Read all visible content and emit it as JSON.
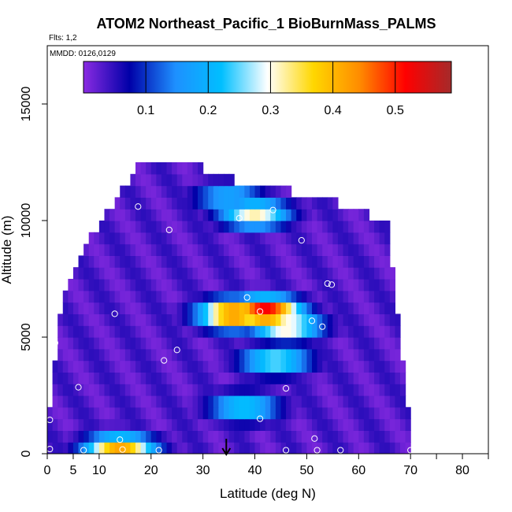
{
  "chart_data": {
    "type": "heatmap",
    "title": "ATOM2 Northeast_Pacific_1 BioBurnMass_PALMS",
    "annotations": [
      "Flts: 1,2",
      "MMDD: 0126,0129"
    ],
    "xlabel": "Latitude (deg N)",
    "ylabel": "Altitude (m)",
    "xlim": [
      0,
      85
    ],
    "ylim": [
      0,
      17500
    ],
    "x_ticks": [
      0,
      5,
      10,
      20,
      30,
      40,
      50,
      60,
      70,
      80
    ],
    "x_minor_ticks": [
      75,
      85
    ],
    "y_ticks": [
      0,
      5000,
      10000,
      15000
    ],
    "colorbar": {
      "range": [
        0,
        0.59
      ],
      "ticks": [
        0.1,
        0.2,
        0.3,
        0.4,
        0.5
      ],
      "colors": [
        "#8a2be2",
        "#0000a8",
        "#1e90ff",
        "#00bfff",
        "#ffffff",
        "#ffd700",
        "#ff8c00",
        "#ff0000",
        "#a52a2a"
      ]
    },
    "layer_extents": {
      "altitudes_m": [
        0,
        1000,
        2000,
        3000,
        4000,
        5000,
        6000,
        7000,
        8000,
        9000,
        10000,
        11000,
        12000
      ],
      "lat_min": [
        0,
        0.5,
        1,
        1.5,
        2,
        2.5,
        3,
        4,
        6,
        8,
        11,
        14,
        17
      ],
      "lat_max": [
        70,
        70,
        69,
        68.5,
        68,
        67.5,
        67,
        66.5,
        66,
        65.5,
        65,
        52,
        30
      ]
    },
    "hotspots": [
      {
        "lat": 42,
        "alt_m": 6100,
        "value": 0.55
      },
      {
        "lat": 36,
        "alt_m": 6000,
        "value": 0.48
      },
      {
        "lat": 46,
        "alt_m": 5500,
        "value": 0.35
      },
      {
        "lat": 44,
        "alt_m": 4000,
        "value": 0.28
      },
      {
        "lat": 40,
        "alt_m": 10300,
        "value": 0.32
      },
      {
        "lat": 14,
        "alt_m": 200,
        "value": 0.42
      },
      {
        "lat": 38,
        "alt_m": 2000,
        "value": 0.25
      },
      {
        "lat": 35,
        "alt_m": 11000,
        "value": 0.2
      }
    ],
    "background_value": 0.03,
    "samples": [
      {
        "lat": 17.5,
        "alt": 10600
      },
      {
        "lat": 23.5,
        "alt": 9600
      },
      {
        "lat": 37,
        "alt": 10100
      },
      {
        "lat": 43.5,
        "alt": 10450
      },
      {
        "lat": 49,
        "alt": 9150
      },
      {
        "lat": 63.5,
        "alt": 10350
      },
      {
        "lat": 54,
        "alt": 7300
      },
      {
        "lat": 54.8,
        "alt": 7250
      },
      {
        "lat": 38.5,
        "alt": 6700
      },
      {
        "lat": 41,
        "alt": 6100
      },
      {
        "lat": 13,
        "alt": 6000
      },
      {
        "lat": 1.5,
        "alt": 6100
      },
      {
        "lat": 51,
        "alt": 5700
      },
      {
        "lat": 53,
        "alt": 5450
      },
      {
        "lat": 1.5,
        "alt": 4750
      },
      {
        "lat": 25,
        "alt": 4450
      },
      {
        "lat": 22.5,
        "alt": 4000
      },
      {
        "lat": 6,
        "alt": 2850
      },
      {
        "lat": 46,
        "alt": 2800
      },
      {
        "lat": 41,
        "alt": 1500
      },
      {
        "lat": 0.5,
        "alt": 1450
      },
      {
        "lat": 51.5,
        "alt": 650
      },
      {
        "lat": 14,
        "alt": 600
      },
      {
        "lat": 0.5,
        "alt": 200
      },
      {
        "lat": 7,
        "alt": 150
      },
      {
        "lat": 14.5,
        "alt": 180
      },
      {
        "lat": 21.5,
        "alt": 150
      },
      {
        "lat": 46,
        "alt": 150
      },
      {
        "lat": 52,
        "alt": 150
      },
      {
        "lat": 56.5,
        "alt": 150
      },
      {
        "lat": 70,
        "alt": 150
      }
    ],
    "arrow_latitude": 34.5
  }
}
